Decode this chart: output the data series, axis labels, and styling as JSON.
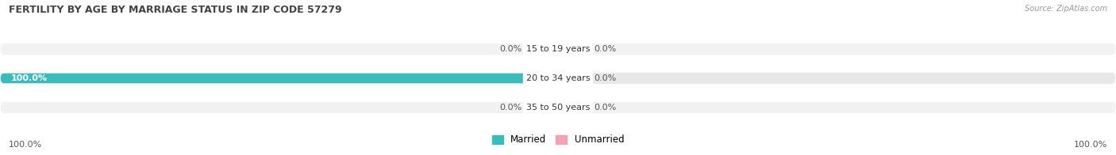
{
  "title": "FERTILITY BY AGE BY MARRIAGE STATUS IN ZIP CODE 57279",
  "source": "Source: ZipAtlas.com",
  "rows": [
    {
      "label": "15 to 19 years",
      "married": 0.0,
      "unmarried": 0.0
    },
    {
      "label": "20 to 34 years",
      "married": 100.0,
      "unmarried": 0.0
    },
    {
      "label": "35 to 50 years",
      "married": 0.0,
      "unmarried": 0.0
    }
  ],
  "married_color": "#3bbcbc",
  "unmarried_color": "#f4a0b5",
  "row_bg_even": "#f2f2f2",
  "row_bg_odd": "#e8e8e8",
  "title_fontsize": 9,
  "source_fontsize": 7,
  "label_fontsize": 8,
  "tick_fontsize": 8,
  "legend_fontsize": 8.5,
  "stub_size": 5.0,
  "axis_min": -100,
  "axis_max": 100,
  "left_label": "100.0%",
  "right_label": "100.0%",
  "bg_color": "#ffffff"
}
